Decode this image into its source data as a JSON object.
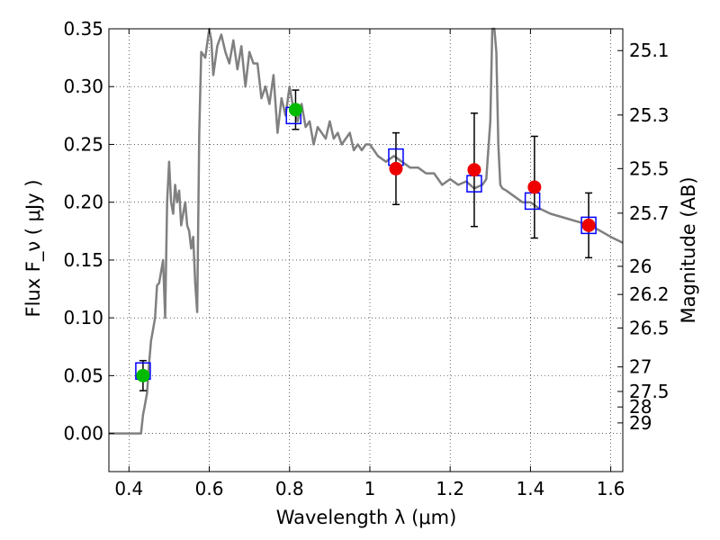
{
  "chart_data": {
    "type": "scatter",
    "xlabel": "Wavelength  λ (μm)",
    "ylabel": "Flux  F_ν  ( μJy )",
    "ylabel_right": "Magnitude (AB)",
    "xlim": [
      0.35,
      1.63
    ],
    "ylim": [
      -0.033,
      0.35
    ],
    "grid": true,
    "x_ticks": [
      {
        "value": 0.4,
        "label": "0.4"
      },
      {
        "value": 0.6,
        "label": "0.6"
      },
      {
        "value": 0.8,
        "label": "0.8"
      },
      {
        "value": 1.0,
        "label": "1"
      },
      {
        "value": 1.2,
        "label": "1.2"
      },
      {
        "value": 1.4,
        "label": "1.4"
      },
      {
        "value": 1.6,
        "label": "1.6"
      }
    ],
    "y_ticks": [
      {
        "value": 0.0,
        "label": "0.00"
      },
      {
        "value": 0.05,
        "label": "0.05"
      },
      {
        "value": 0.1,
        "label": "0.10"
      },
      {
        "value": 0.15,
        "label": "0.15"
      },
      {
        "value": 0.2,
        "label": "0.20"
      },
      {
        "value": 0.25,
        "label": "0.25"
      },
      {
        "value": 0.3,
        "label": "0.30"
      },
      {
        "value": 0.35,
        "label": "0.35"
      }
    ],
    "right_ticks": [
      {
        "mag": 25.1,
        "label": "25.1"
      },
      {
        "mag": 25.3,
        "label": "25.3"
      },
      {
        "mag": 25.5,
        "label": "25.5"
      },
      {
        "mag": 25.7,
        "label": "25.7"
      },
      {
        "mag": 26.0,
        "label": "26"
      },
      {
        "mag": 26.2,
        "label": "26.2"
      },
      {
        "mag": 26.5,
        "label": "26.5"
      },
      {
        "mag": 27.0,
        "label": "27"
      },
      {
        "mag": 27.5,
        "label": "27.5"
      },
      {
        "mag": 28.0,
        "label": "28"
      },
      {
        "mag": 29.0,
        "label": "29"
      }
    ],
    "model_sed": {
      "color": "#808080",
      "x": [
        0.35,
        0.43,
        0.435,
        0.44,
        0.445,
        0.45,
        0.455,
        0.46,
        0.465,
        0.47,
        0.475,
        0.48,
        0.485,
        0.49,
        0.495,
        0.5,
        0.505,
        0.51,
        0.515,
        0.52,
        0.525,
        0.53,
        0.535,
        0.54,
        0.545,
        0.55,
        0.555,
        0.56,
        0.565,
        0.57,
        0.575,
        0.58,
        0.59,
        0.6,
        0.605,
        0.61,
        0.62,
        0.63,
        0.64,
        0.65,
        0.66,
        0.67,
        0.68,
        0.69,
        0.7,
        0.71,
        0.72,
        0.73,
        0.74,
        0.75,
        0.76,
        0.77,
        0.78,
        0.79,
        0.8,
        0.81,
        0.82,
        0.83,
        0.84,
        0.85,
        0.86,
        0.87,
        0.88,
        0.89,
        0.9,
        0.91,
        0.92,
        0.93,
        0.94,
        0.95,
        0.96,
        0.97,
        0.98,
        0.99,
        1.0,
        1.02,
        1.04,
        1.06,
        1.08,
        1.1,
        1.12,
        1.14,
        1.16,
        1.18,
        1.2,
        1.22,
        1.24,
        1.26,
        1.28,
        1.29,
        1.3,
        1.305,
        1.31,
        1.315,
        1.32,
        1.325,
        1.33,
        1.34,
        1.36,
        1.38,
        1.4,
        1.42,
        1.45,
        1.5,
        1.55,
        1.6,
        1.63
      ],
      "y": [
        0.0,
        0.0,
        0.016,
        0.025,
        0.035,
        0.06,
        0.08,
        0.09,
        0.1,
        0.128,
        0.13,
        0.14,
        0.15,
        0.1,
        0.2,
        0.235,
        0.2,
        0.19,
        0.215,
        0.2,
        0.21,
        0.18,
        0.19,
        0.2,
        0.18,
        0.175,
        0.16,
        0.17,
        0.13,
        0.105,
        0.26,
        0.33,
        0.325,
        0.35,
        0.34,
        0.31,
        0.335,
        0.345,
        0.33,
        0.32,
        0.34,
        0.315,
        0.335,
        0.3,
        0.33,
        0.32,
        0.32,
        0.29,
        0.3,
        0.285,
        0.31,
        0.26,
        0.29,
        0.275,
        0.3,
        0.28,
        0.27,
        0.285,
        0.265,
        0.27,
        0.25,
        0.265,
        0.26,
        0.255,
        0.27,
        0.255,
        0.26,
        0.25,
        0.255,
        0.26,
        0.245,
        0.25,
        0.245,
        0.25,
        0.25,
        0.24,
        0.235,
        0.24,
        0.235,
        0.23,
        0.23,
        0.225,
        0.225,
        0.215,
        0.22,
        0.215,
        0.218,
        0.212,
        0.215,
        0.22,
        0.27,
        0.35,
        0.35,
        0.33,
        0.25,
        0.215,
        0.212,
        0.21,
        0.205,
        0.2,
        0.2,
        0.195,
        0.19,
        0.185,
        0.18,
        0.17,
        0.165
      ]
    },
    "series": [
      {
        "name": "",
        "marker": "circle",
        "colors": [
          "#00bb00",
          "#00bb00",
          "#ee0000",
          "#ee0000",
          "#ee0000",
          "#ee0000"
        ],
        "x": [
          0.435,
          0.815,
          1.065,
          1.26,
          1.41,
          1.545
        ],
        "y": [
          0.05,
          0.28,
          0.229,
          0.228,
          0.213,
          0.18
        ],
        "yerr": [
          0.013,
          0.017,
          0.031,
          0.049,
          0.044,
          0.028
        ]
      },
      {
        "name": "",
        "marker": "open-square",
        "color": "#0000ff",
        "x": [
          0.435,
          0.81,
          1.065,
          1.26,
          1.405,
          1.545
        ],
        "y": [
          0.054,
          0.275,
          0.239,
          0.216,
          0.201,
          0.18
        ]
      }
    ]
  }
}
